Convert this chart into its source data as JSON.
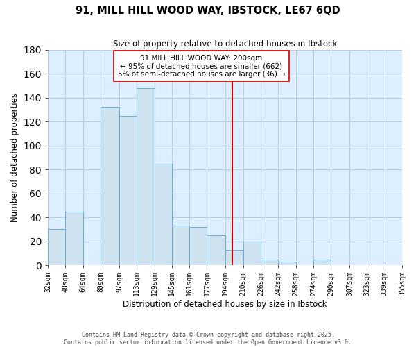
{
  "title": "91, MILL HILL WOOD WAY, IBSTOCK, LE67 6QD",
  "subtitle": "Size of property relative to detached houses in Ibstock",
  "xlabel": "Distribution of detached houses by size in Ibstock",
  "ylabel": "Number of detached properties",
  "bin_edges": [
    32,
    48,
    64,
    80,
    97,
    113,
    129,
    145,
    161,
    177,
    194,
    210,
    226,
    242,
    258,
    274,
    290,
    307,
    323,
    339,
    355
  ],
  "bin_labels": [
    "32sqm",
    "48sqm",
    "64sqm",
    "80sqm",
    "97sqm",
    "113sqm",
    "129sqm",
    "145sqm",
    "161sqm",
    "177sqm",
    "194sqm",
    "210sqm",
    "226sqm",
    "242sqm",
    "258sqm",
    "274sqm",
    "290sqm",
    "307sqm",
    "323sqm",
    "339sqm",
    "355sqm"
  ],
  "counts": [
    30,
    45,
    0,
    132,
    125,
    148,
    85,
    33,
    32,
    25,
    13,
    20,
    5,
    3,
    0,
    5,
    0,
    0,
    0,
    0,
    1
  ],
  "bar_color": "#cfe2f0",
  "bar_edge_color": "#6aaed6",
  "vline_x": 200,
  "vline_color": "#cc0000",
  "annotation_line1": "91 MILL HILL WOOD WAY: 200sqm",
  "annotation_line2": "← 95% of detached houses are smaller (662)",
  "annotation_line3": "5% of semi-detached houses are larger (36) →",
  "ylim": [
    0,
    180
  ],
  "yticks": [
    0,
    20,
    40,
    60,
    80,
    100,
    120,
    140,
    160,
    180
  ],
  "footer_line1": "Contains HM Land Registry data © Crown copyright and database right 2025.",
  "footer_line2": "Contains public sector information licensed under the Open Government Licence v3.0.",
  "bg_color": "#ffffff",
  "plot_bg_color": "#ddeeff",
  "grid_color": "#b8cfe0"
}
